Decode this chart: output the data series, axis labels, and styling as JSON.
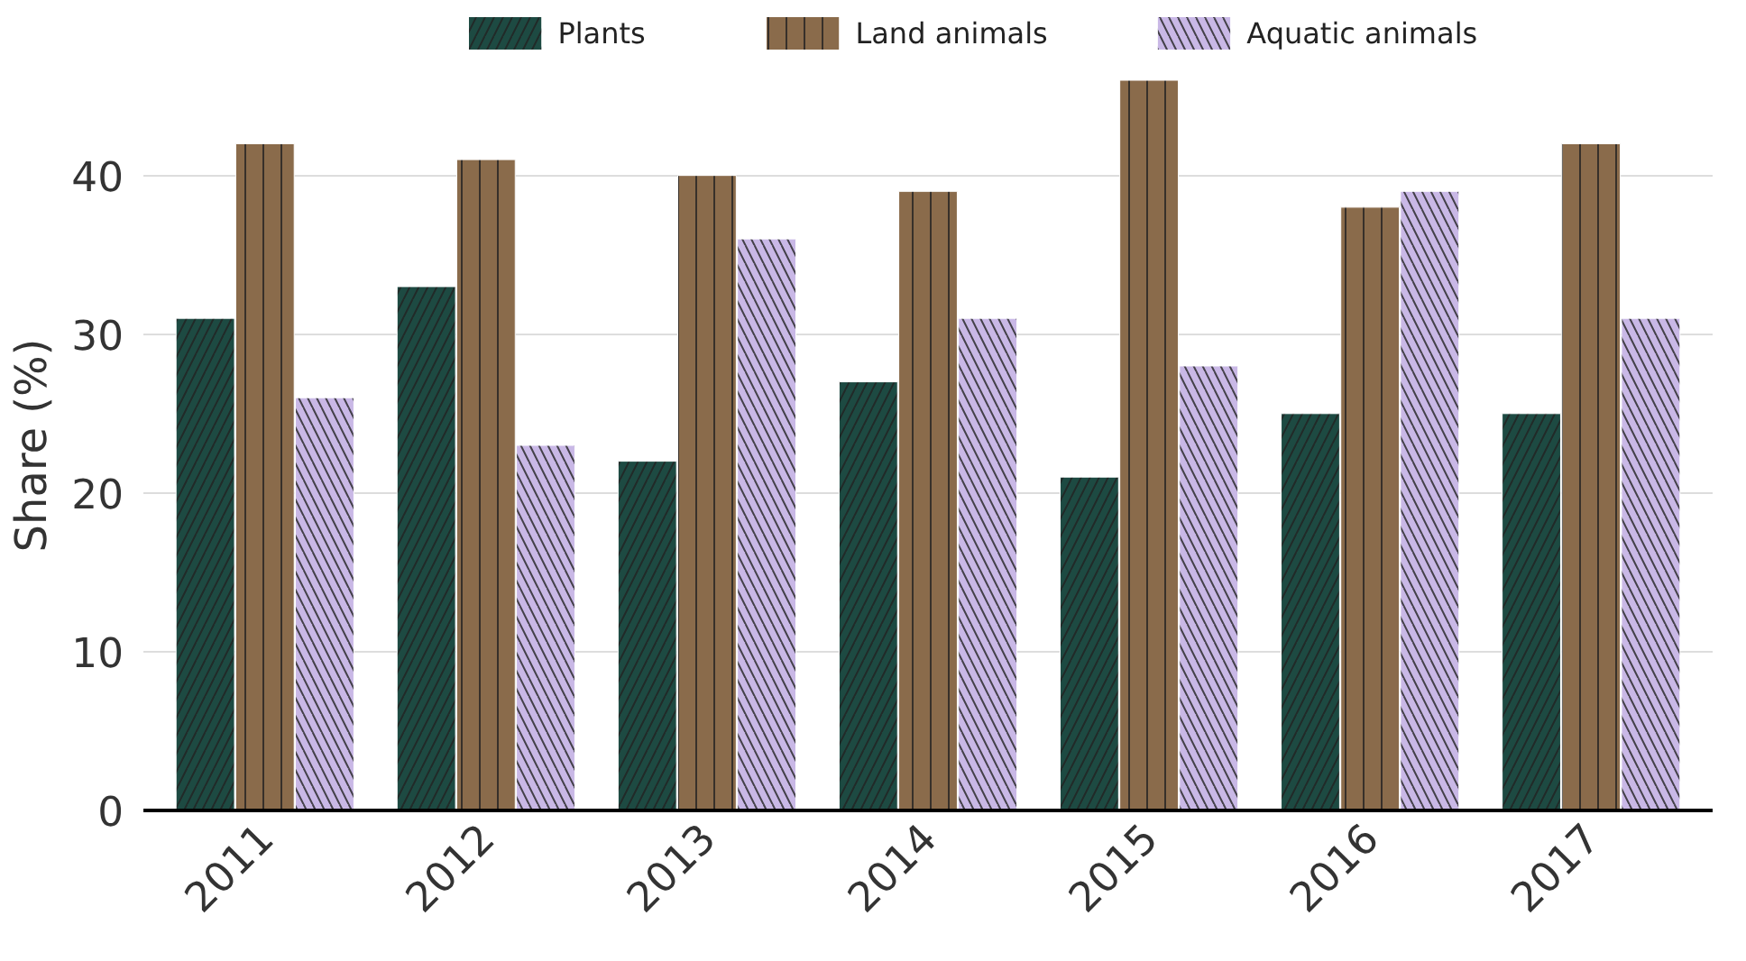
{
  "chart_data": {
    "type": "bar",
    "ylabel": "Share (%)",
    "categories": [
      "2011",
      "2012",
      "2013",
      "2014",
      "2015",
      "2016",
      "2017"
    ],
    "series": [
      {
        "name": "Plants",
        "color": "#1d4a42",
        "values": [
          31,
          33,
          22,
          27,
          21,
          25,
          25
        ]
      },
      {
        "name": "Land animals",
        "color": "#8a6b4b",
        "values": [
          42,
          41,
          40,
          39,
          46,
          38,
          42
        ]
      },
      {
        "name": "Aquatic animals",
        "color": "#c9b8e6",
        "values": [
          26,
          23,
          36,
          31,
          28,
          39,
          31
        ]
      }
    ],
    "ylim": [
      0,
      46
    ],
    "yticks": [
      0,
      10,
      20,
      30,
      40
    ],
    "grid": "y",
    "legend": "top"
  }
}
